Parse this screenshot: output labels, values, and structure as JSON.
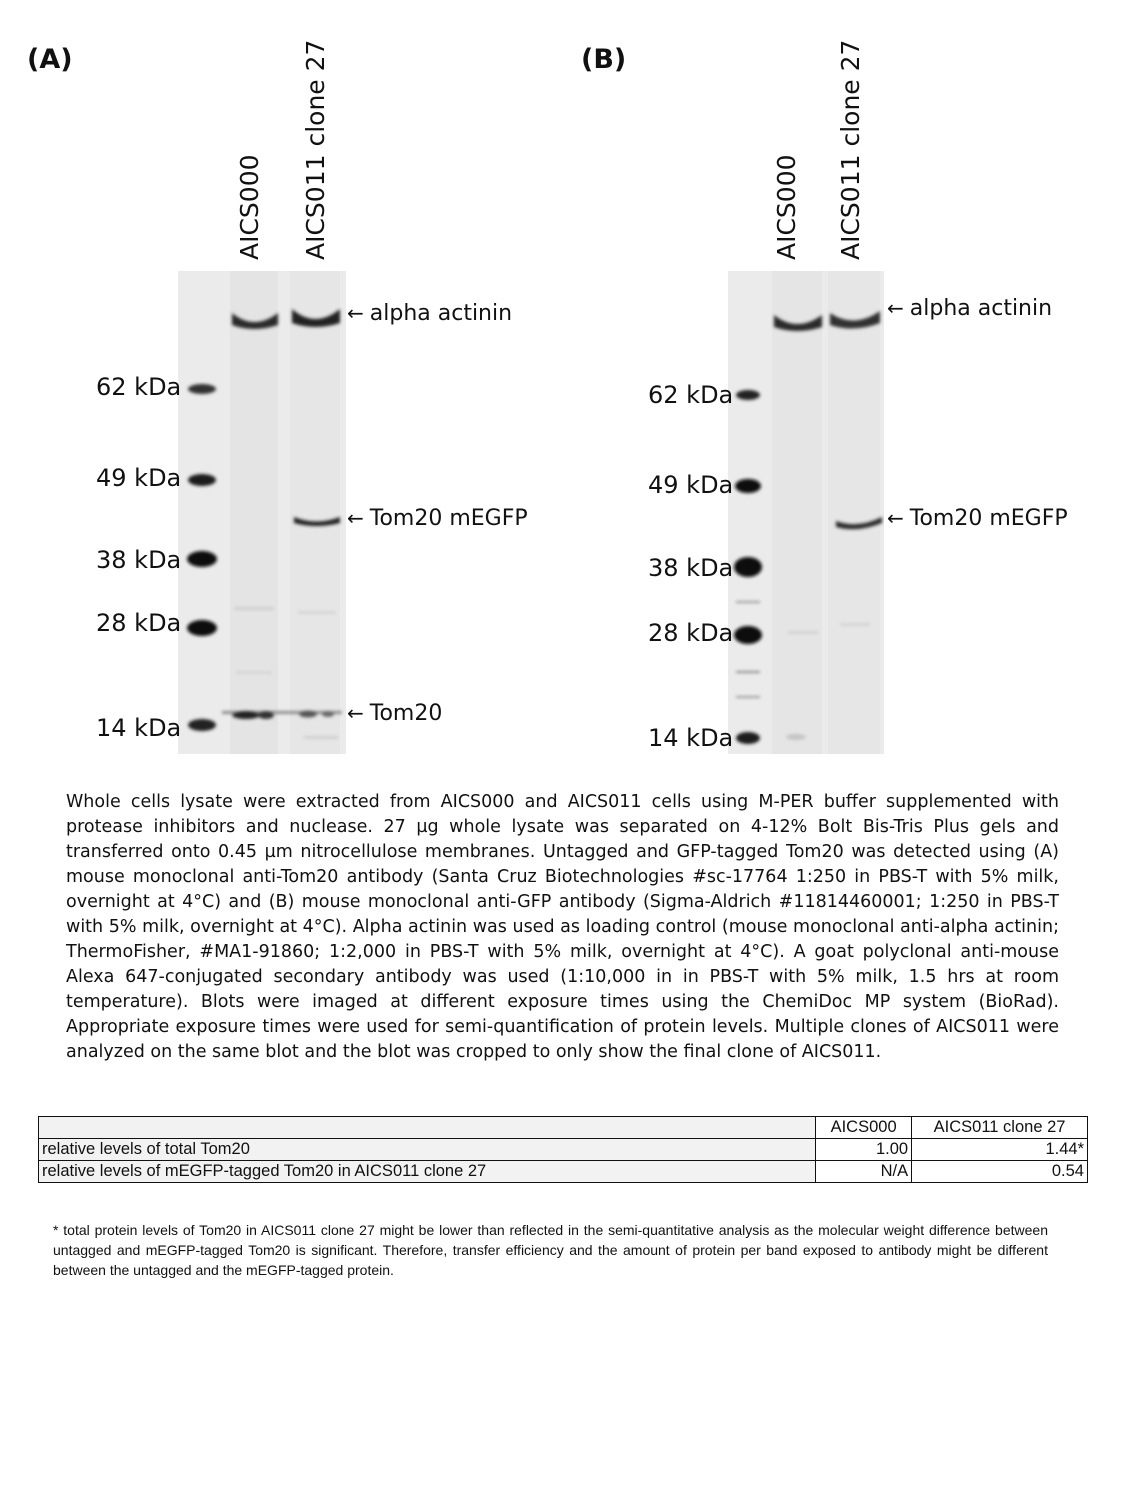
{
  "panels": {
    "A": {
      "label": "(A)",
      "lanes": [
        "AICS000",
        "AICS011 clone 27"
      ],
      "markers": [
        "62 kDa",
        "49 kDa",
        "38 kDa",
        "28 kDa",
        "14 kDa"
      ],
      "band_labels": [
        "alpha actinin",
        "Tom20 mEGFP",
        "Tom20"
      ]
    },
    "B": {
      "label": "(B)",
      "lanes": [
        "AICS000",
        "AICS011 clone 27"
      ],
      "markers": [
        "62 kDa",
        "49 kDa",
        "38 kDa",
        "28 kDa",
        "14 kDa"
      ],
      "band_labels": [
        "alpha actinin",
        "Tom20 mEGFP"
      ]
    }
  },
  "arrow_glyph": "←",
  "caption": "Whole cells lysate were extracted from AICS000 and AICS011 cells using M-PER buffer supplemented with protease inhibitors and nuclease. 27 µg whole lysate was separated on 4-12% Bolt Bis-Tris Plus gels and transferred onto 0.45 µm nitrocellulose membranes. Untagged and GFP-tagged Tom20 was detected using (A) mouse monoclonal anti-Tom20 antibody (Santa Cruz Biotechnologies #sc-17764 1:250 in PBS-T with 5% milk, overnight at 4°C) and (B) mouse monoclonal anti-GFP antibody (Sigma-Aldrich #11814460001; 1:250 in PBS-T with 5% milk, overnight at 4°C). Alpha actinin was used as loading control (mouse monoclonal anti-alpha actinin; ThermoFisher, #MA1-91860; 1:2,000 in PBS-T with 5% milk, overnight at 4°C). A goat polyclonal anti-mouse Alexa 647-conjugated secondary antibody was used (1:10,000 in in PBS-T with 5% milk, 1.5 hrs at room temperature). Blots were imaged at different exposure times using the ChemiDoc MP system (BioRad). Appropriate exposure times were used for semi-quantification of protein levels. Multiple clones of AICS011 were analyzed on the same blot and the blot was cropped to only show the final clone of AICS011.",
  "table": {
    "headers": [
      "",
      "AICS000",
      "AICS011 clone 27"
    ],
    "rows": [
      [
        "relative levels of total Tom20",
        "1.00",
        "1.44*"
      ],
      [
        "relative levels of mEGFP-tagged Tom20 in AICS011 clone 27",
        "N/A",
        "0.54"
      ]
    ]
  },
  "footnote": "* total protein levels of Tom20 in AICS011 clone 27 might be lower than reflected in the semi-quantitative analysis as the molecular weight difference between untagged and mEGFP-tagged Tom20 is significant. Therefore, transfer efficiency and the amount of protein per band exposed to antibody might be different between the untagged and the mEGFP-tagged protein."
}
